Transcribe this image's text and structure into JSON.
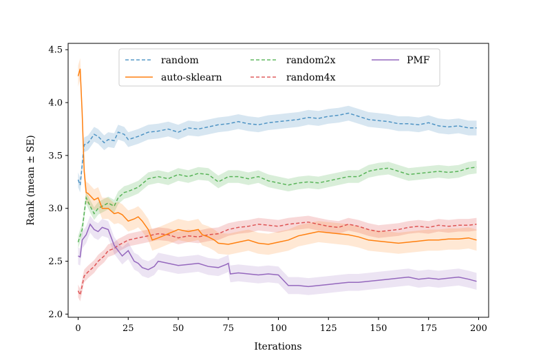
{
  "chart_data": {
    "type": "line",
    "title": "",
    "xlabel": "Iterations",
    "ylabel": "Rank (mean ± SE)",
    "xlim": [
      -5,
      205
    ],
    "ylim": [
      1.97,
      4.56
    ],
    "xticks": [
      0,
      25,
      50,
      75,
      100,
      125,
      150,
      175,
      200
    ],
    "yticks": [
      2.0,
      2.5,
      3.0,
      3.5,
      4.0,
      4.5
    ],
    "ytick_labels": [
      "2.0",
      "2.5",
      "3.0",
      "3.5",
      "4.0",
      "4.5"
    ],
    "legend_position": "upper-center",
    "series": [
      {
        "name": "random",
        "color": "#1f77b4",
        "dashed": true,
        "se": 0.07,
        "x": [
          0,
          1,
          3,
          5,
          8,
          10,
          13,
          15,
          18,
          20,
          23,
          25,
          30,
          35,
          40,
          45,
          50,
          55,
          60,
          65,
          70,
          75,
          80,
          85,
          90,
          95,
          100,
          105,
          110,
          115,
          120,
          125,
          130,
          135,
          140,
          145,
          150,
          155,
          160,
          165,
          170,
          175,
          180,
          185,
          190,
          195,
          199
        ],
        "y": [
          3.27,
          3.22,
          3.6,
          3.62,
          3.7,
          3.68,
          3.62,
          3.65,
          3.64,
          3.72,
          3.7,
          3.65,
          3.68,
          3.72,
          3.73,
          3.75,
          3.72,
          3.76,
          3.75,
          3.77,
          3.79,
          3.8,
          3.82,
          3.8,
          3.79,
          3.81,
          3.82,
          3.83,
          3.84,
          3.86,
          3.85,
          3.87,
          3.88,
          3.9,
          3.87,
          3.84,
          3.83,
          3.82,
          3.8,
          3.8,
          3.79,
          3.81,
          3.78,
          3.77,
          3.78,
          3.76,
          3.76
        ]
      },
      {
        "name": "random2x",
        "color": "#2ca02c",
        "dashed": true,
        "se": 0.06,
        "x": [
          0,
          2,
          4,
          6,
          8,
          10,
          13,
          15,
          18,
          20,
          23,
          25,
          30,
          35,
          40,
          45,
          50,
          55,
          60,
          65,
          70,
          75,
          80,
          85,
          90,
          95,
          100,
          105,
          110,
          115,
          120,
          125,
          130,
          135,
          140,
          145,
          150,
          155,
          160,
          165,
          170,
          175,
          180,
          185,
          190,
          195,
          199
        ],
        "y": [
          2.68,
          2.8,
          3.1,
          3.02,
          2.95,
          3.0,
          3.03,
          3.05,
          3.02,
          3.1,
          3.15,
          3.16,
          3.2,
          3.28,
          3.3,
          3.28,
          3.32,
          3.3,
          3.33,
          3.32,
          3.25,
          3.3,
          3.3,
          3.28,
          3.3,
          3.26,
          3.24,
          3.22,
          3.24,
          3.25,
          3.24,
          3.26,
          3.28,
          3.3,
          3.3,
          3.35,
          3.37,
          3.38,
          3.35,
          3.32,
          3.33,
          3.34,
          3.35,
          3.34,
          3.35,
          3.38,
          3.39
        ]
      },
      {
        "name": "random4x",
        "color": "#d62728",
        "dashed": true,
        "se": 0.06,
        "x": [
          0,
          1,
          3,
          5,
          8,
          10,
          13,
          15,
          18,
          20,
          23,
          25,
          30,
          35,
          40,
          45,
          50,
          55,
          60,
          65,
          70,
          75,
          80,
          85,
          90,
          95,
          100,
          105,
          110,
          115,
          120,
          125,
          130,
          135,
          140,
          145,
          150,
          155,
          160,
          165,
          170,
          175,
          180,
          185,
          190,
          195,
          199
        ],
        "y": [
          2.22,
          2.18,
          2.36,
          2.4,
          2.45,
          2.5,
          2.55,
          2.6,
          2.62,
          2.65,
          2.68,
          2.7,
          2.72,
          2.74,
          2.76,
          2.75,
          2.72,
          2.74,
          2.73,
          2.75,
          2.76,
          2.8,
          2.82,
          2.83,
          2.85,
          2.84,
          2.83,
          2.85,
          2.86,
          2.87,
          2.85,
          2.83,
          2.82,
          2.85,
          2.83,
          2.8,
          2.78,
          2.79,
          2.8,
          2.82,
          2.83,
          2.82,
          2.84,
          2.83,
          2.84,
          2.84,
          2.85
        ]
      },
      {
        "name": "auto-sklearn",
        "color": "#ff7f0e",
        "dashed": false,
        "se": 0.1,
        "x": [
          0,
          1,
          2,
          3,
          4,
          5,
          8,
          10,
          12,
          15,
          18,
          20,
          22,
          25,
          28,
          30,
          32,
          35,
          37,
          40,
          45,
          50,
          55,
          60,
          62,
          65,
          68,
          70,
          75,
          80,
          85,
          90,
          95,
          100,
          105,
          110,
          115,
          120,
          125,
          130,
          135,
          140,
          145,
          150,
          155,
          160,
          165,
          170,
          175,
          180,
          185,
          190,
          195,
          199
        ],
        "y": [
          4.25,
          4.32,
          3.9,
          3.35,
          3.15,
          3.14,
          3.08,
          3.1,
          3.0,
          3.0,
          2.95,
          2.96,
          2.94,
          2.88,
          2.9,
          2.92,
          2.88,
          2.8,
          2.7,
          2.72,
          2.76,
          2.8,
          2.78,
          2.8,
          2.75,
          2.73,
          2.7,
          2.67,
          2.66,
          2.68,
          2.7,
          2.67,
          2.66,
          2.68,
          2.7,
          2.74,
          2.76,
          2.78,
          2.77,
          2.76,
          2.75,
          2.73,
          2.7,
          2.69,
          2.68,
          2.67,
          2.68,
          2.69,
          2.7,
          2.7,
          2.71,
          2.71,
          2.72,
          2.7
        ]
      },
      {
        "name": "PMF",
        "color": "#9467bd",
        "dashed": false,
        "se": 0.08,
        "x": [
          0,
          1,
          2,
          4,
          6,
          8,
          10,
          12,
          15,
          18,
          20,
          22,
          25,
          28,
          30,
          32,
          35,
          38,
          40,
          45,
          50,
          55,
          60,
          65,
          70,
          74,
          75,
          76,
          80,
          85,
          90,
          95,
          100,
          105,
          110,
          115,
          120,
          125,
          130,
          135,
          140,
          145,
          150,
          155,
          160,
          165,
          170,
          175,
          180,
          185,
          190,
          195,
          199
        ],
        "y": [
          2.55,
          2.54,
          2.7,
          2.75,
          2.85,
          2.8,
          2.78,
          2.82,
          2.8,
          2.65,
          2.6,
          2.55,
          2.6,
          2.5,
          2.48,
          2.44,
          2.42,
          2.45,
          2.5,
          2.48,
          2.46,
          2.47,
          2.48,
          2.45,
          2.44,
          2.47,
          2.48,
          2.38,
          2.39,
          2.38,
          2.37,
          2.38,
          2.37,
          2.27,
          2.27,
          2.26,
          2.27,
          2.28,
          2.29,
          2.3,
          2.3,
          2.31,
          2.32,
          2.33,
          2.34,
          2.35,
          2.33,
          2.34,
          2.33,
          2.34,
          2.35,
          2.33,
          2.31
        ]
      }
    ],
    "legend": [
      {
        "label": "random",
        "color": "#1f77b4",
        "dashed": true
      },
      {
        "label": "auto-sklearn",
        "color": "#ff7f0e",
        "dashed": false
      },
      {
        "label": "random2x",
        "color": "#2ca02c",
        "dashed": true
      },
      {
        "label": "random4x",
        "color": "#d62728",
        "dashed": true
      },
      {
        "label": "PMF",
        "color": "#9467bd",
        "dashed": false
      }
    ]
  }
}
